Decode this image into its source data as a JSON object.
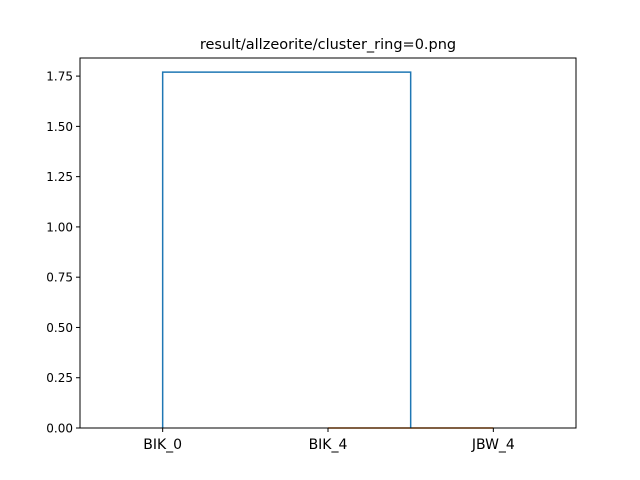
{
  "chart_data": {
    "type": "dendrogram",
    "title": "result/allzeorite/cluster_ring=0.png",
    "xlabel": "",
    "ylabel": "",
    "leaves": [
      "BIK_0",
      "BIK_4",
      "JBW_4"
    ],
    "ylim": [
      0,
      1.84
    ],
    "yticks": [
      0.0,
      0.25,
      0.5,
      0.75,
      1.0,
      1.25,
      1.5,
      1.75
    ],
    "ytick_labels": [
      "0.00",
      "0.25",
      "0.50",
      "0.75",
      "1.00",
      "1.25",
      "1.50",
      "1.75"
    ],
    "links": [
      {
        "left_leaf": "BIK_4",
        "right_leaf": "JBW_4",
        "height": 0.0,
        "color": "#ff7f0e"
      },
      {
        "left_leaf": "BIK_0",
        "right_cluster": [
          "BIK_4",
          "JBW_4"
        ],
        "height": 1.77,
        "color": "#1f77b4"
      }
    ],
    "grid": false,
    "legend": "none"
  }
}
